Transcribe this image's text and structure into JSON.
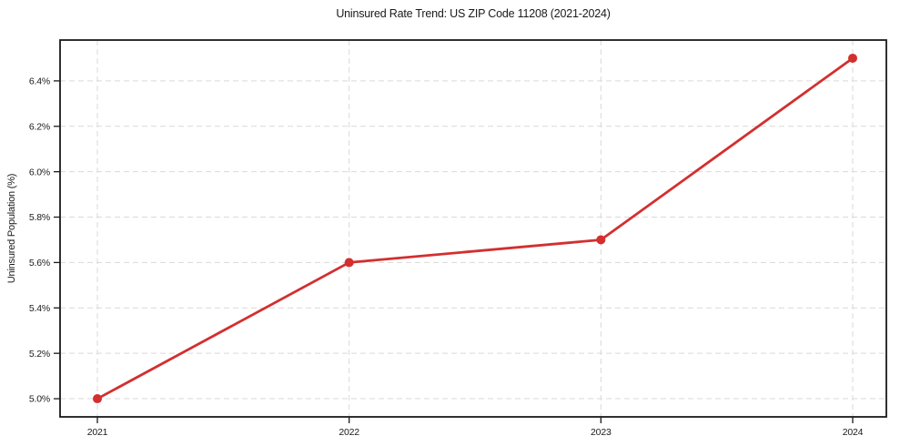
{
  "chart_data": {
    "type": "line",
    "title": "Uninsured Rate Trend: US ZIP Code 11208 (2021-2024)",
    "xlabel": "",
    "ylabel": "Uninsured Population (%)",
    "x": [
      "2021",
      "2022",
      "2023",
      "2024"
    ],
    "series": [
      {
        "name": "Uninsured Population",
        "values": [
          5.0,
          5.6,
          5.7,
          6.5
        ]
      }
    ],
    "ytick_values": [
      5.0,
      5.2,
      5.4,
      5.6,
      5.8,
      6.0,
      6.2,
      6.4
    ],
    "ytick_labels": [
      "5.0%",
      "5.2%",
      "5.4%",
      "5.6%",
      "5.8%",
      "6.0%",
      "6.2%",
      "6.4%"
    ],
    "ylim": [
      4.92,
      6.58
    ],
    "grid": true,
    "grid_style": "dashed",
    "legend": "none",
    "colors": {
      "line": "#d32f2f",
      "marker": "#d32f2f",
      "grid": "#d9d9d9",
      "spine": "#1a1a1a",
      "tick": "#1a1a1a",
      "text": "#1a1a1a",
      "background": "#ffffff"
    }
  }
}
